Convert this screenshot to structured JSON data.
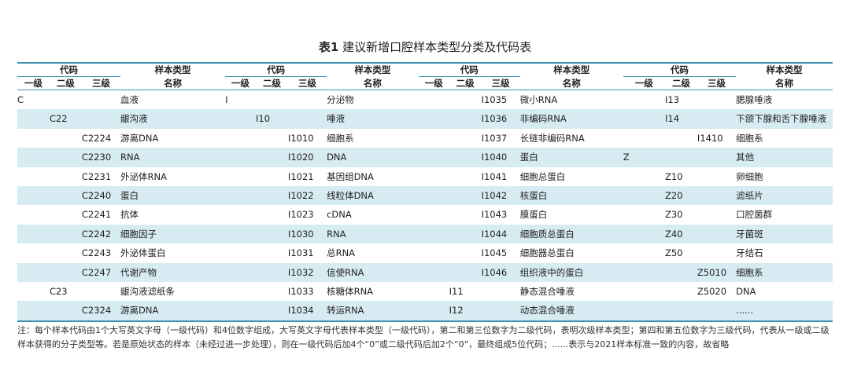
{
  "title": {
    "number": "表1",
    "text": "建议新增口腔样本类型分类及代码表"
  },
  "headers": {
    "code": "代码",
    "type_line1": "样本类型",
    "type_line2": "名称",
    "level1": "一级",
    "level2": "二级",
    "level3": "三级"
  },
  "rows": [
    [
      [
        "C",
        "",
        "",
        "血液"
      ],
      [
        "I",
        "",
        "",
        "分泌物"
      ],
      [
        "",
        "",
        "I1035",
        "微小RNA"
      ],
      [
        "",
        "I13",
        "",
        "腮腺唾液"
      ]
    ],
    [
      [
        "",
        "C22",
        "",
        "龈沟液"
      ],
      [
        "",
        "I10",
        "",
        "唾液"
      ],
      [
        "",
        "",
        "I1036",
        "非编码RNA"
      ],
      [
        "",
        "I14",
        "",
        "下颌下腺和舌下腺唾液"
      ]
    ],
    [
      [
        "",
        "",
        "C2224",
        "游离DNA"
      ],
      [
        "",
        "",
        "I1010",
        "细胞系"
      ],
      [
        "",
        "",
        "I1037",
        "长链非编码RNA"
      ],
      [
        "",
        "",
        "I1410",
        "细胞系"
      ]
    ],
    [
      [
        "",
        "",
        "C2230",
        "RNA"
      ],
      [
        "",
        "",
        "I1020",
        "DNA"
      ],
      [
        "",
        "",
        "I1040",
        "蛋白"
      ],
      [
        "Z",
        "",
        "",
        "其他"
      ]
    ],
    [
      [
        "",
        "",
        "C2231",
        "外泌体RNA"
      ],
      [
        "",
        "",
        "I1021",
        "基因组DNA"
      ],
      [
        "",
        "",
        "I1041",
        "细胞总蛋白"
      ],
      [
        "",
        "Z10",
        "",
        "卵细胞"
      ]
    ],
    [
      [
        "",
        "",
        "C2240",
        "蛋白"
      ],
      [
        "",
        "",
        "I1022",
        "线粒体DNA"
      ],
      [
        "",
        "",
        "I1042",
        "核蛋白"
      ],
      [
        "",
        "Z20",
        "",
        "滤纸片"
      ]
    ],
    [
      [
        "",
        "",
        "C2241",
        "抗体"
      ],
      [
        "",
        "",
        "I1023",
        "cDNA"
      ],
      [
        "",
        "",
        "I1043",
        "膜蛋白"
      ],
      [
        "",
        "Z30",
        "",
        "口腔菌群"
      ]
    ],
    [
      [
        "",
        "",
        "C2242",
        "细胞因子"
      ],
      [
        "",
        "",
        "I1030",
        "RNA"
      ],
      [
        "",
        "",
        "I1044",
        "细胞质总蛋白"
      ],
      [
        "",
        "Z40",
        "",
        "牙菌斑"
      ]
    ],
    [
      [
        "",
        "",
        "C2243",
        "外泌体蛋白"
      ],
      [
        "",
        "",
        "I1031",
        "总RNA"
      ],
      [
        "",
        "",
        "I1045",
        "细胞器总蛋白"
      ],
      [
        "",
        "Z50",
        "",
        "牙结石"
      ]
    ],
    [
      [
        "",
        "",
        "C2247",
        "代谢产物"
      ],
      [
        "",
        "",
        "I1032",
        "信使RNA"
      ],
      [
        "",
        "",
        "I1046",
        "组织液中的蛋白"
      ],
      [
        "",
        "",
        "Z5010",
        "细胞系"
      ]
    ],
    [
      [
        "",
        "C23",
        "",
        "龈沟液滤纸条"
      ],
      [
        "",
        "",
        "I1033",
        "核糖体RNA"
      ],
      [
        "",
        "I11",
        "",
        "静态混合唾液"
      ],
      [
        "",
        "",
        "Z5020",
        "DNA"
      ]
    ],
    [
      [
        "",
        "",
        "C2324",
        "游离DNA"
      ],
      [
        "",
        "",
        "I1034",
        "转运RNA"
      ],
      [
        "",
        "I12",
        "",
        "动态混合唾液"
      ],
      [
        "",
        "",
        "",
        "......"
      ]
    ]
  ],
  "note": "注：每个样本代码由1个大写英文字母（一级代码）和4位数字组成，大写英文字母代表样本类型（一级代码），第二和第三位数字为二级代码，表明次级样本类型；第四和第五位数字为三级代码，代表从一级或二级样本获得的分子类型等。若是原始状态的样本（未经过进一步处理），则在一级代码后加4个“0”或二级代码后加2个“0”，最终组成5位代码；......表示与2021样本标准一致的内容，故省略",
  "colors": {
    "rule": "#3a93b4",
    "stripe": "#d7ebf2"
  }
}
